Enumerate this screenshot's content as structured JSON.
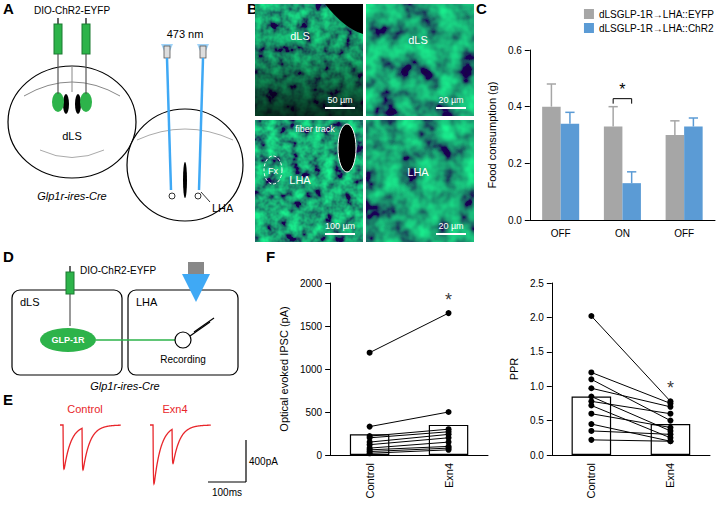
{
  "panel_labels": [
    "A",
    "B",
    "C",
    "D",
    "E",
    "F"
  ],
  "panel_A": {
    "virus": "DIO-ChR2-EYFP",
    "light": "473 nm",
    "injection_site": "dLS",
    "target": "LHA",
    "mouse_line": "Glp1r-ires-Cre"
  },
  "panel_B": {
    "images": [
      {
        "region": "dLS",
        "scale_bar": "50 µm"
      },
      {
        "region": "dLS",
        "scale_bar": "20 µm"
      },
      {
        "region": "LHA",
        "scale_bar": "100 µm",
        "annotations": [
          "fiber track",
          "Fx"
        ]
      },
      {
        "region": "LHA",
        "scale_bar": "20 µm"
      }
    ]
  },
  "panel_D": {
    "virus": "DIO-ChR2-EYFP",
    "source": "dLS",
    "cell": "GLP-1R",
    "target": "LHA",
    "method": "Recording",
    "mouse_line": "Glp1r-ires-Cre"
  },
  "panel_E": {
    "traces": [
      {
        "name": "Control",
        "peaks_pA": [
          420,
          400
        ]
      },
      {
        "name": "Exn4",
        "peaks_pA": [
          560,
          330
        ]
      }
    ],
    "pulse_interval_ms": 50,
    "scale_bar_current": {
      "value": 400,
      "label": "400pA"
    },
    "scale_bar_time": {
      "value": 100,
      "label": "100ms"
    }
  },
  "chart_data": [
    {
      "type": "bar",
      "ylabel": "Food consumption (g)",
      "categories": [
        "OFF",
        "ON",
        "OFF"
      ],
      "series": [
        {
          "name": "dLSGLP-1R→LHA::EYFP",
          "color": "#a6a6a6",
          "values": [
            0.4,
            0.33,
            0.3
          ],
          "errors": [
            0.08,
            0.07,
            0.05
          ]
        },
        {
          "name": "dLSGLP-1R→LHA::ChR2",
          "color": "#5b9bd5",
          "values": [
            0.34,
            0.13,
            0.33
          ],
          "errors": [
            0.04,
            0.04,
            0.03
          ]
        }
      ],
      "ylim": [
        0,
        0.6
      ],
      "yticks": [
        {
          "value": 0,
          "label": "0.0"
        },
        0.2,
        0.4,
        0.6
      ],
      "legend": "top-right",
      "grid": false,
      "annotations": [
        {
          "category": "ON",
          "label": "*"
        }
      ]
    },
    {
      "type": "paired",
      "ylabel": "Optical evoked IPSC (pA)",
      "categories": [
        "Control",
        "Exn4"
      ],
      "values": [
        240,
        350
      ],
      "paired_values": [
        [
          1190,
          1650
        ],
        [
          330,
          500
        ],
        [
          220,
          300
        ],
        [
          200,
          270
        ],
        [
          150,
          240
        ],
        [
          120,
          200
        ],
        [
          80,
          150
        ],
        [
          60,
          100
        ],
        [
          40,
          80
        ],
        [
          20,
          60
        ]
      ],
      "ylim": [
        0,
        2000
      ],
      "yticks": [
        0,
        500,
        1000,
        1500,
        2000
      ],
      "marker": "circle",
      "grid": false,
      "annotations": [
        {
          "category": "Exn4",
          "label": "*"
        }
      ]
    },
    {
      "type": "paired",
      "ylabel": "PPR",
      "categories": [
        "Control",
        "Exn4"
      ],
      "values": [
        0.85,
        0.45
      ],
      "paired_values": [
        [
          2.02,
          0.78
        ],
        [
          1.2,
          0.75
        ],
        [
          1.1,
          0.5
        ],
        [
          0.97,
          0.7
        ],
        [
          0.85,
          0.35
        ],
        [
          0.78,
          0.6
        ],
        [
          0.72,
          0.25
        ],
        [
          0.6,
          0.4
        ],
        [
          0.45,
          0.2
        ],
        [
          0.35,
          0.3
        ],
        [
          0.22,
          0.2
        ]
      ],
      "ylim": [
        0,
        2.5
      ],
      "yticks": [
        {
          "value": 0,
          "label": "0.0"
        },
        0.5,
        {
          "value": 1,
          "label": "1.0"
        },
        1.5,
        {
          "value": 2,
          "label": "2.0"
        },
        2.5
      ],
      "marker": "circle",
      "grid": false,
      "annotations": [
        {
          "category": "Exn4",
          "label": "*"
        }
      ]
    }
  ]
}
